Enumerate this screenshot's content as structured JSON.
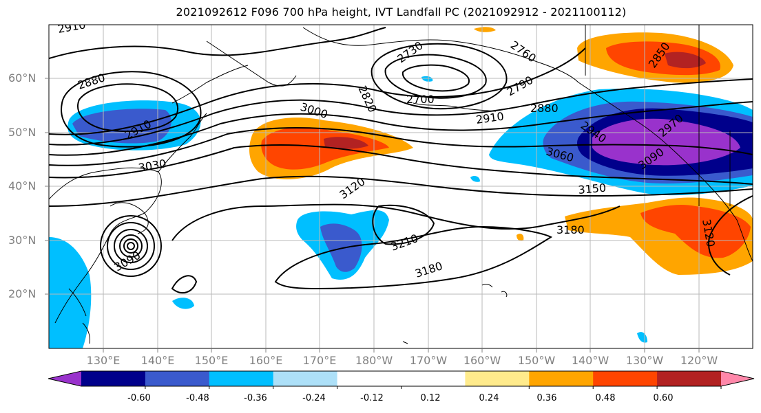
{
  "title": "2021092612 F096 700 hPa height, IVT Landfall PC (2021092912 - 2021100112)",
  "lat_labels": [
    "60°N",
    "50°N",
    "40°N",
    "30°N",
    "20°N"
  ],
  "lon_labels": [
    "130°E",
    "140°E",
    "150°E",
    "160°E",
    "170°E",
    "180°W",
    "170°W",
    "160°W",
    "150°W",
    "140°W",
    "130°W",
    "120°W"
  ],
  "contour_labels": [
    "2910",
    "2880",
    "2910",
    "3030",
    "3000",
    "2730",
    "2760",
    "2820",
    "2790",
    "2700",
    "2880",
    "2910",
    "2850",
    "2940",
    "2970",
    "3060",
    "3090",
    "3120",
    "3150",
    "3180",
    "3210",
    "3180",
    "3120",
    "3090"
  ],
  "colorbar": {
    "colors": [
      "#9932CC",
      "#00008B",
      "#3A5ACD",
      "#00BFFF",
      "#ADE0F8",
      "#FFFFFF",
      "#FFFFFF",
      "#FFEB8C",
      "#FFA500",
      "#FF4500",
      "#B22222",
      "#FF88AA"
    ],
    "tick_labels": [
      "-0.60",
      "-0.48",
      "-0.36",
      "-0.24",
      "-0.12",
      "0.12",
      "0.24",
      "0.36",
      "0.48",
      "0.60"
    ]
  }
}
